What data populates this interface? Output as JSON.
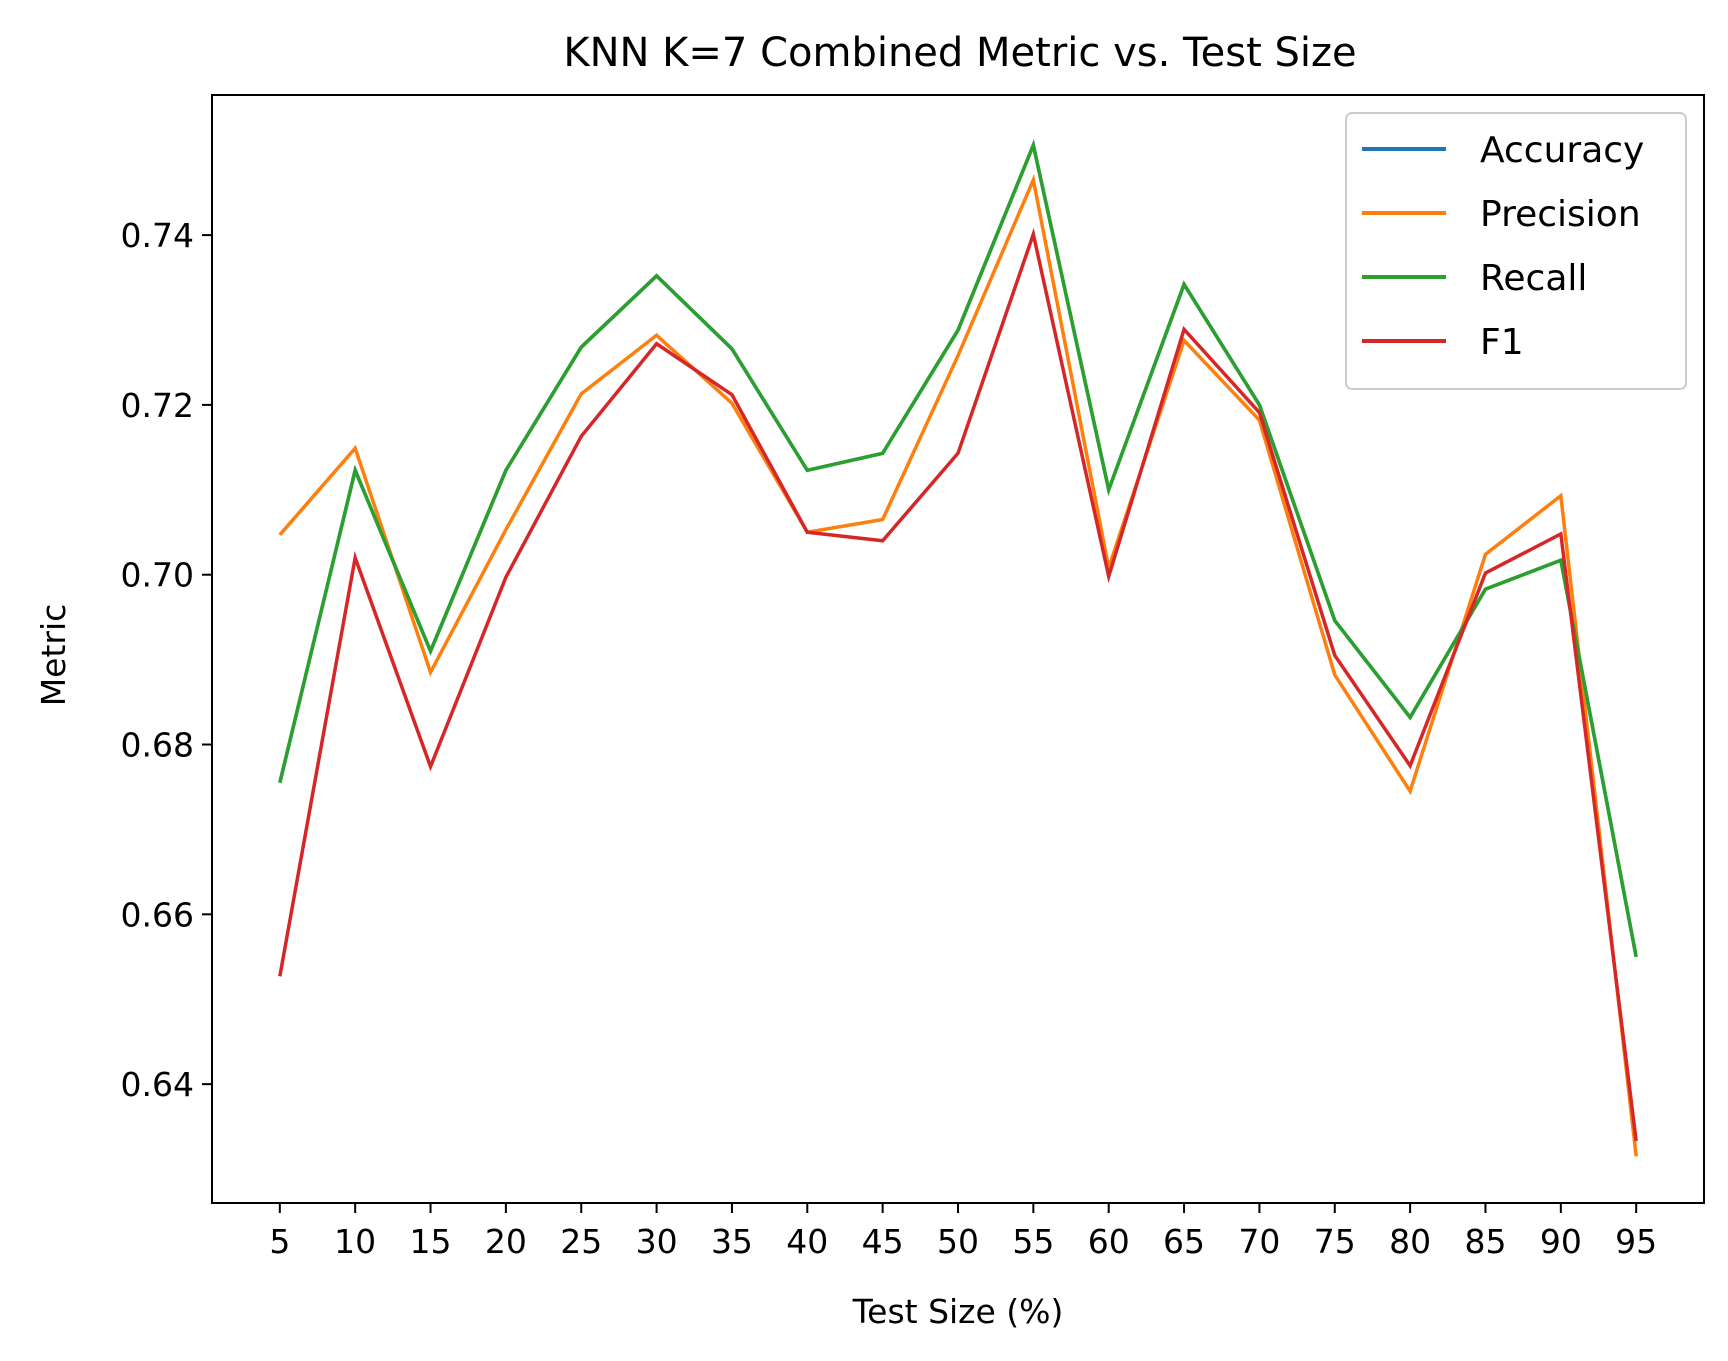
{
  "chart_data": {
    "type": "line",
    "title": "KNN K=7  Combined Metric vs. Test Size",
    "xlabel": "Test Size (%)",
    "ylabel": "Metric",
    "x": [
      5,
      10,
      15,
      20,
      25,
      30,
      35,
      40,
      45,
      50,
      55,
      60,
      65,
      70,
      75,
      80,
      85,
      90,
      95
    ],
    "xlim": [
      0.5,
      99.5
    ],
    "ylim": [
      0.626,
      0.7565
    ],
    "yticks": [
      0.64,
      0.66,
      0.68,
      0.7,
      0.72,
      0.74
    ],
    "ytick_labels": [
      "0.64",
      "0.66",
      "0.68",
      "0.70",
      "0.72",
      "0.74"
    ],
    "xtick_labels": [
      "5",
      "10",
      "15",
      "20",
      "25",
      "30",
      "35",
      "40",
      "45",
      "50",
      "55",
      "60",
      "65",
      "70",
      "75",
      "80",
      "85",
      "90",
      "95"
    ],
    "grid": false,
    "legend_position": "top-right",
    "series": [
      {
        "name": "Accuracy",
        "color": "#1f77b4",
        "values": [
          0.6755,
          0.7123,
          0.691,
          0.7123,
          0.7268,
          0.7352,
          0.7266,
          0.7123,
          0.7143,
          0.7288,
          0.7506,
          0.71,
          0.7342,
          0.72,
          0.6946,
          0.6832,
          0.6983,
          0.7017,
          0.655
        ]
      },
      {
        "name": "Precision",
        "color": "#ff7f0e",
        "values": [
          0.7047,
          0.7149,
          0.6885,
          0.7053,
          0.7213,
          0.7282,
          0.7202,
          0.705,
          0.7065,
          0.7258,
          0.7465,
          0.7008,
          0.7276,
          0.7182,
          0.6882,
          0.6745,
          0.7024,
          0.7093,
          0.6315
        ]
      },
      {
        "name": "Recall",
        "color": "#2ca02c",
        "values": [
          0.6755,
          0.7123,
          0.691,
          0.7123,
          0.7268,
          0.7352,
          0.7266,
          0.7123,
          0.7143,
          0.7288,
          0.7506,
          0.71,
          0.7342,
          0.72,
          0.6946,
          0.6832,
          0.6983,
          0.7017,
          0.655
        ]
      },
      {
        "name": "F1",
        "color": "#d62728",
        "values": [
          0.6527,
          0.702,
          0.6774,
          0.6997,
          0.7163,
          0.7272,
          0.7212,
          0.705,
          0.704,
          0.7143,
          0.7401,
          0.6998,
          0.7289,
          0.7191,
          0.6905,
          0.6775,
          0.7002,
          0.7048,
          0.6333
        ]
      }
    ]
  }
}
